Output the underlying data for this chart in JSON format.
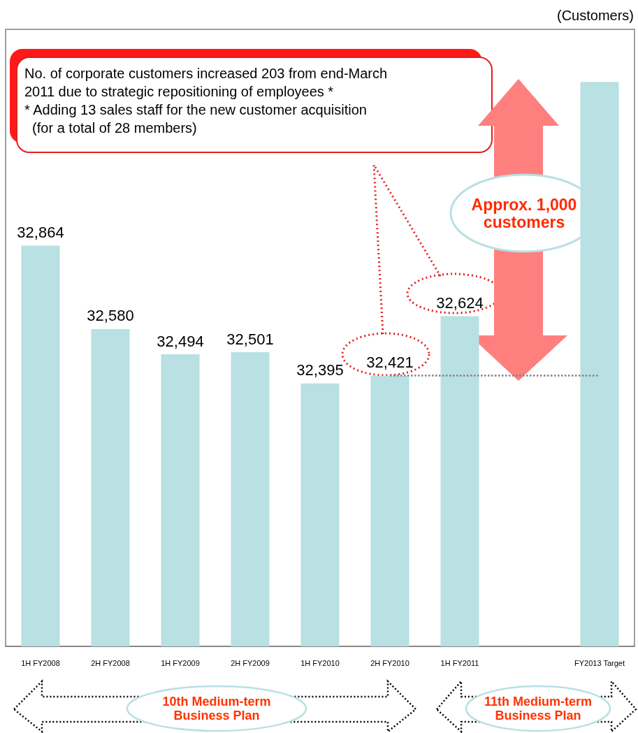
{
  "chart_data": {
    "type": "bar",
    "ylabel": "(Customers)",
    "categories": [
      "1H FY2008",
      "2H FY2008",
      "1H FY2009",
      "2H FY2009",
      "1H FY2010",
      "2H FY2010",
      "1H FY2011",
      null,
      "FY2013 Target"
    ],
    "values": [
      32864,
      32580,
      32494,
      32501,
      32395,
      32421,
      32624,
      null,
      33421
    ],
    "value_labels": [
      "32,864",
      "32,580",
      "32,494",
      "32,501",
      "32,395",
      "32,421",
      "32,624",
      null,
      null
    ],
    "color": "#b9e0e2",
    "ylim": [
      31500,
      33600
    ],
    "tick_labels": "x",
    "ref_lines": [
      {
        "axis": "y",
        "value": 32421,
        "label": null,
        "color": "#808080",
        "line_style": "dotted"
      }
    ],
    "annotations": [
      "No. of corporate customers increased 203 from end-March\n2011 due to strategic repositioning of employees *\n* Adding 13 sales staff for the new customer acquisition\n  (for a total of 28 members)",
      "Approx. 1,000\ncustomers",
      "10th Medium-term\nBusiness Plan",
      "11th Medium-term\nBusiness Plan"
    ]
  }
}
